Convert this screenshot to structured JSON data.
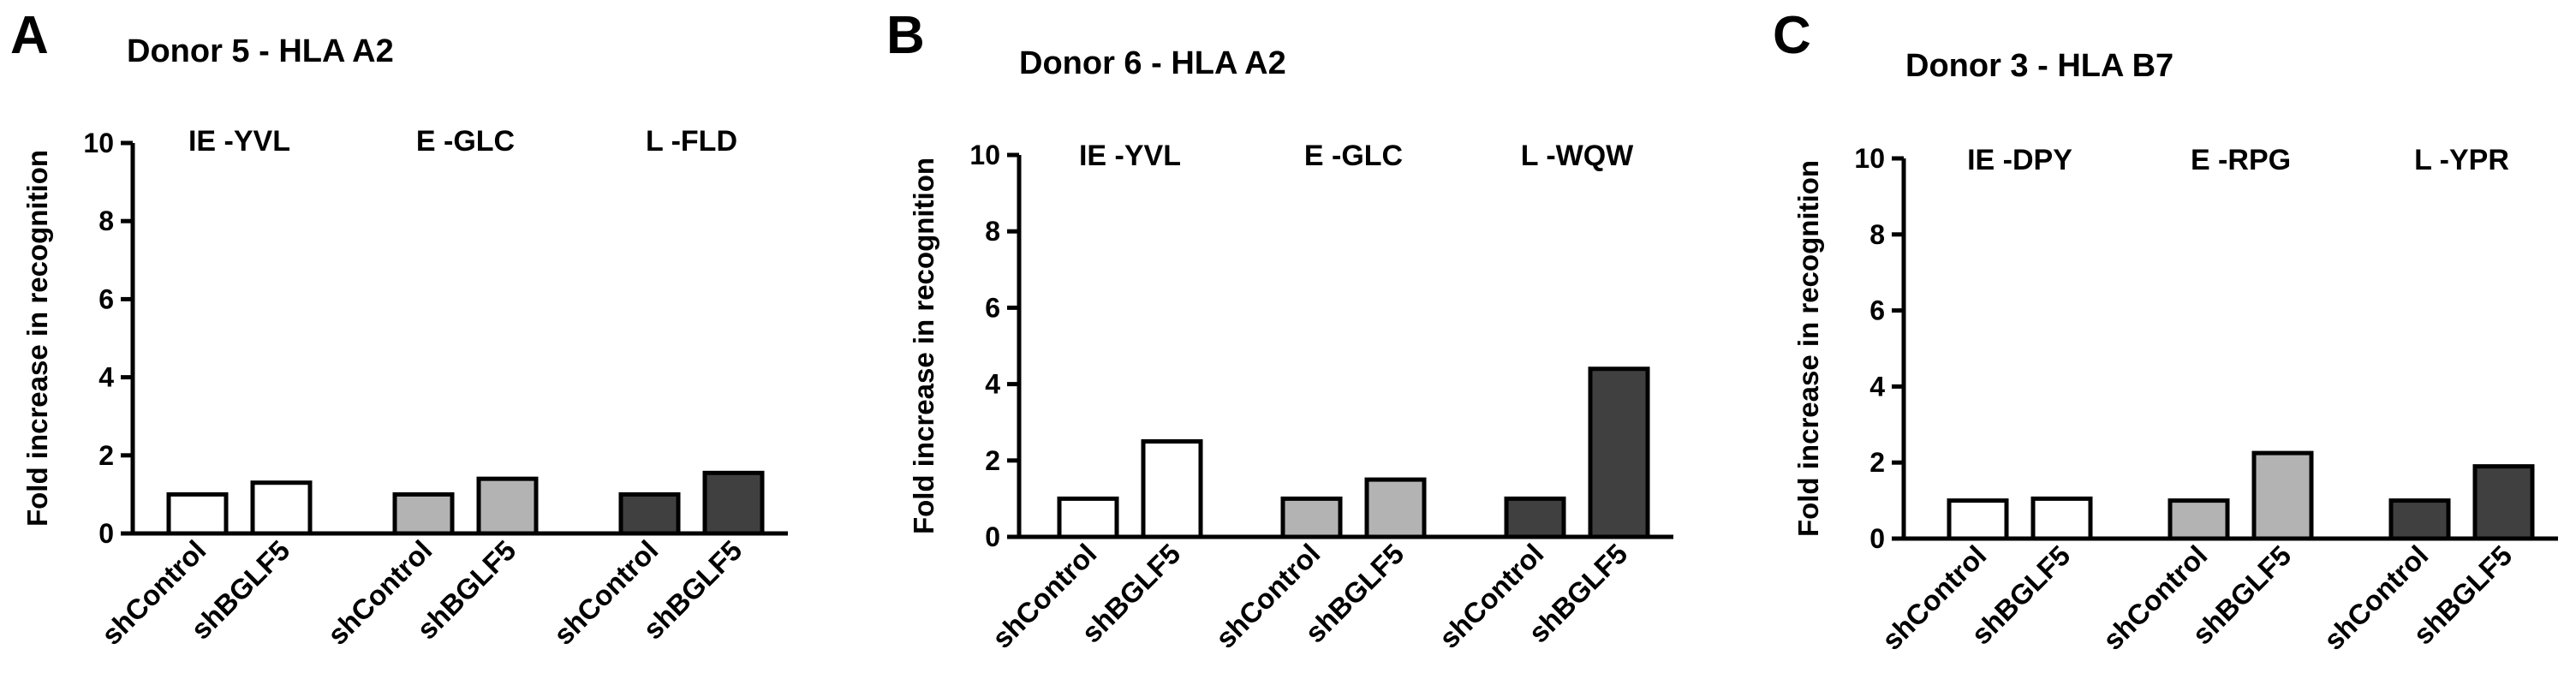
{
  "chart_data": [
    {
      "type": "bar",
      "panel_letter": "A",
      "title": "Donor 5 - HLA A2",
      "ylabel": "Fold increase in recognition",
      "xlabel": "",
      "ylim": [
        0,
        10
      ],
      "yticks": [
        0,
        2,
        4,
        6,
        8,
        10
      ],
      "groups": [
        {
          "label": "IE -YVL",
          "color": "#ffffff",
          "categories": [
            "shControl",
            "shBGLF5"
          ],
          "values": [
            1.0,
            1.3
          ]
        },
        {
          "label": "E -GLC",
          "color": "#b3b3b3",
          "categories": [
            "shControl",
            "shBGLF5"
          ],
          "values": [
            1.0,
            1.4
          ]
        },
        {
          "label": "L -FLD",
          "color": "#404040",
          "categories": [
            "shControl",
            "shBGLF5"
          ],
          "values": [
            1.0,
            1.55
          ]
        }
      ]
    },
    {
      "type": "bar",
      "panel_letter": "B",
      "title": "Donor 6 - HLA A2",
      "ylabel": "Fold increase in recognition",
      "xlabel": "",
      "ylim": [
        0,
        10
      ],
      "yticks": [
        0,
        2,
        4,
        6,
        8,
        10
      ],
      "groups": [
        {
          "label": "IE -YVL",
          "color": "#ffffff",
          "categories": [
            "shControl",
            "shBGLF5"
          ],
          "values": [
            1.0,
            2.5
          ]
        },
        {
          "label": "E -GLC",
          "color": "#b3b3b3",
          "categories": [
            "shControl",
            "shBGLF5"
          ],
          "values": [
            1.0,
            1.5
          ]
        },
        {
          "label": "L -WQW",
          "color": "#404040",
          "categories": [
            "shControl",
            "shBGLF5"
          ],
          "values": [
            1.0,
            4.4
          ]
        }
      ]
    },
    {
      "type": "bar",
      "panel_letter": "C",
      "title": "Donor 3 - HLA B7",
      "ylabel": "Fold increase in recognition",
      "xlabel": "",
      "ylim": [
        0,
        10
      ],
      "yticks": [
        0,
        2,
        4,
        6,
        8,
        10
      ],
      "groups": [
        {
          "label": "IE -DPY",
          "color": "#ffffff",
          "categories": [
            "shControl",
            "shBGLF5"
          ],
          "values": [
            1.0,
            1.05
          ]
        },
        {
          "label": "E -RPG",
          "color": "#b3b3b3",
          "categories": [
            "shControl",
            "shBGLF5"
          ],
          "values": [
            1.0,
            2.25
          ]
        },
        {
          "label": "L -YPR",
          "color": "#404040",
          "categories": [
            "shControl",
            "shBGLF5"
          ],
          "values": [
            1.0,
            1.9
          ]
        }
      ]
    }
  ]
}
